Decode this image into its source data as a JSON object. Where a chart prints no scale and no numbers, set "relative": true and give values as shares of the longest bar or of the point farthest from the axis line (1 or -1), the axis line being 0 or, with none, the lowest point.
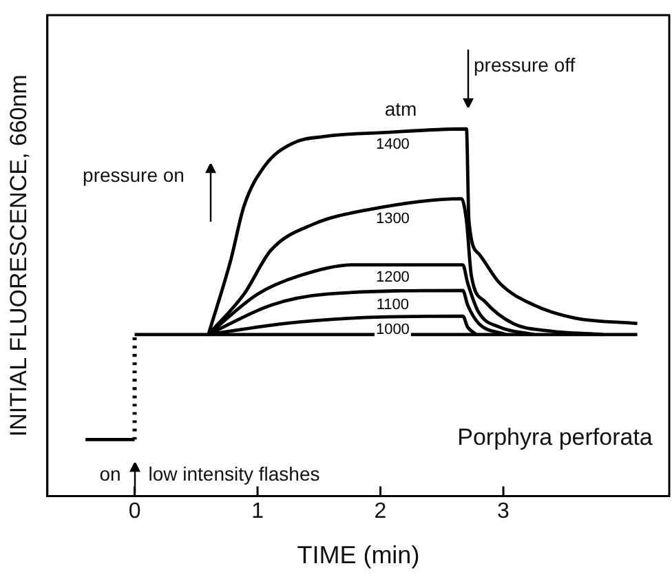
{
  "chart_data": {
    "type": "line",
    "xlabel": "TIME (min)",
    "ylabel": "INITIAL FLUORESCENCE, 660nm",
    "relative": true,
    "xlim": [
      -0.71,
      4.35
    ],
    "xticks": [
      0,
      1,
      2,
      3
    ],
    "grid": false,
    "legend": false,
    "marker": "none",
    "series": [
      {
        "color": "#000000",
        "x": [
          -0.4,
          0
        ],
        "values": [
          0.154,
          0.154
        ]
      },
      {
        "color": "#000000",
        "line_style": "dotted",
        "x": [
          0,
          0
        ],
        "values": [
          0.154,
          0.44
        ]
      },
      {
        "color": "#000000",
        "x": [
          0,
          4.09
        ],
        "values": [
          0.44,
          0.44
        ]
      },
      {
        "name": "1400",
        "color": "#000000",
        "x": [
          0.6,
          0.78,
          0.89,
          1.06,
          1.28,
          1.56,
          2.01,
          2.69,
          2.7,
          2.72,
          2.8,
          2.97,
          3.25,
          3.58,
          4.09
        ],
        "values": [
          0.44,
          0.64,
          0.79,
          0.9,
          0.96,
          0.98,
          0.99,
          1.0,
          1.0,
          0.75,
          0.66,
          0.58,
          0.52,
          0.485,
          0.47
        ]
      },
      {
        "name": "1300",
        "color": "#000000",
        "x": [
          0.6,
          0.89,
          1.11,
          1.45,
          1.9,
          2.66,
          2.7,
          2.74,
          2.85,
          3.08,
          3.36,
          3.81
        ],
        "values": [
          0.44,
          0.55,
          0.67,
          0.74,
          0.78,
          0.81,
          0.75,
          0.6,
          0.53,
          0.47,
          0.45,
          0.44
        ]
      },
      {
        "name": "1200",
        "color": "#000000",
        "x": [
          0.6,
          1.0,
          1.34,
          1.79,
          2.67,
          2.71,
          2.8,
          2.97,
          3.25
        ],
        "values": [
          0.44,
          0.55,
          0.6,
          0.63,
          0.63,
          0.58,
          0.5,
          0.46,
          0.44
        ]
      },
      {
        "name": "1100",
        "color": "#000000",
        "x": [
          0.6,
          1.11,
          1.56,
          2.67,
          2.71,
          2.8,
          3.02
        ],
        "values": [
          0.44,
          0.52,
          0.55,
          0.56,
          0.52,
          0.47,
          0.44
        ]
      },
      {
        "name": "1000",
        "color": "#000000",
        "x": [
          0.6,
          1.22,
          1.79,
          2.67,
          2.71,
          2.78
        ],
        "values": [
          0.44,
          0.47,
          0.485,
          0.49,
          0.46,
          0.44
        ]
      }
    ],
    "annotations": [
      "pressure off",
      "atm",
      "pressure on",
      "Porphyra perforata",
      "on",
      "low intensity flashes"
    ]
  }
}
